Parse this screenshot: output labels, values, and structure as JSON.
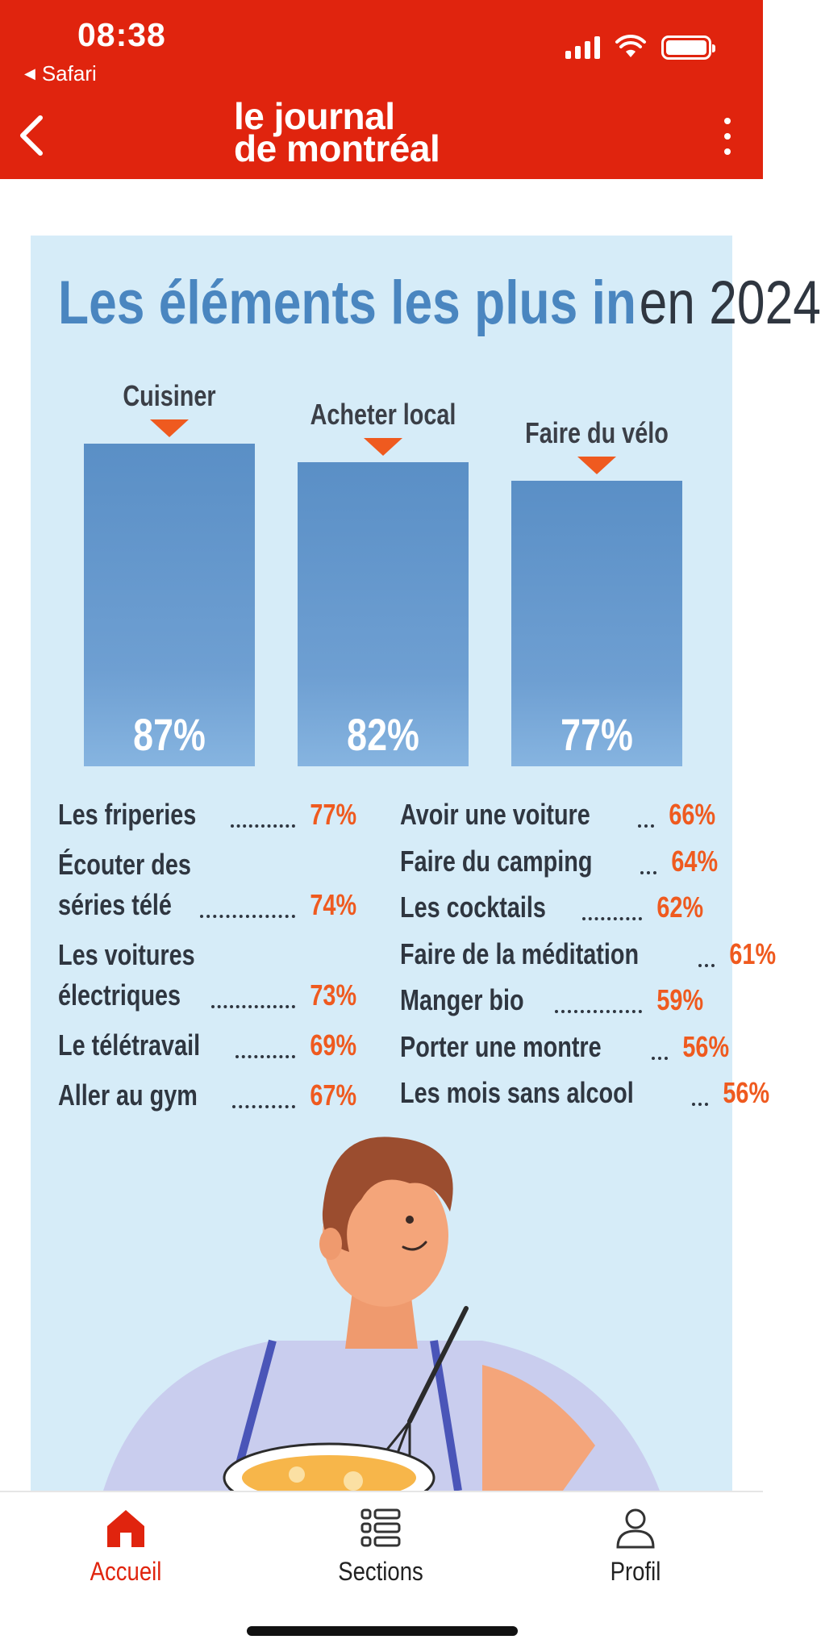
{
  "status_bar": {
    "time": "08:38",
    "back_app": "Safari"
  },
  "header": {
    "logo_line1": "le journal",
    "logo_line2": "de montréal"
  },
  "infographic": {
    "title_part1": "Les éléments les plus in",
    "title_part2": "en 2024",
    "top3": [
      {
        "label": "Cuisiner",
        "value_label": "87%"
      },
      {
        "label": "Acheter local",
        "value_label": "82%"
      },
      {
        "label": "Faire du vélo",
        "value_label": "77%"
      }
    ],
    "left_list": [
      {
        "label": "Les friperies",
        "value": "77%"
      },
      {
        "label": "Écouter des séries télé",
        "line1": "Écouter des",
        "line2": "séries télé",
        "value": "74%"
      },
      {
        "label": "Les voitures électriques",
        "line1": "Les voitures",
        "line2": "électriques",
        "value": "73%"
      },
      {
        "label": "Le télétravail",
        "value": "69%"
      },
      {
        "label": "Aller au gym",
        "value": "67%"
      }
    ],
    "right_list": [
      {
        "label": "Avoir une voiture",
        "value": "66%"
      },
      {
        "label": "Faire du camping",
        "value": "64%"
      },
      {
        "label": "Les cocktails",
        "value": "62%"
      },
      {
        "label": "Faire de la méditation",
        "value": "61%"
      },
      {
        "label": "Manger bio",
        "value": "59%"
      },
      {
        "label": "Porter une montre",
        "value": "56%"
      },
      {
        "label": "Les mois sans alcool",
        "value": "56%"
      }
    ]
  },
  "chart_data": {
    "type": "bar",
    "categories": [
      "Cuisiner",
      "Acheter local",
      "Faire du vélo"
    ],
    "values": [
      87,
      82,
      77
    ],
    "title": "Les éléments les plus in en 2024",
    "xlabel": "",
    "ylabel": "",
    "ylim": [
      0,
      100
    ],
    "grid": false
  },
  "tabbar": {
    "tabs": [
      {
        "label": "Accueil",
        "icon": "home-icon",
        "active": true
      },
      {
        "label": "Sections",
        "icon": "sections-list-icon",
        "active": false
      },
      {
        "label": "Profil",
        "icon": "profile-icon",
        "active": false
      }
    ]
  },
  "colors": {
    "brand_red": "#e0240e",
    "accent_orange": "#ef5a1f",
    "bar_blue": "#6e9fd2",
    "panel_bg": "#d6ecf8"
  }
}
